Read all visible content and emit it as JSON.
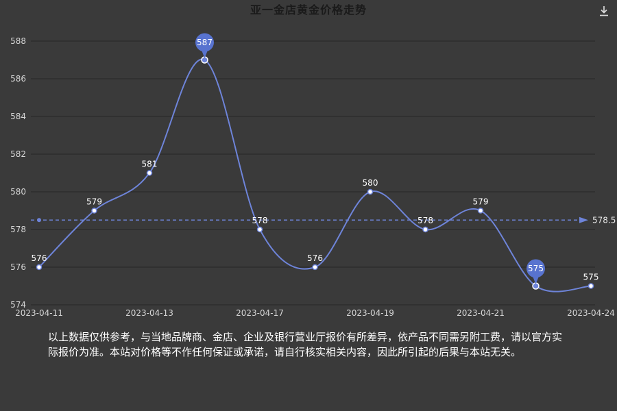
{
  "header": {
    "title": "亚一金店黄金价格走势"
  },
  "toolbar": {
    "download_icon": "download-icon"
  },
  "chart_data": {
    "type": "line",
    "title": "亚一金店黄金价格走势",
    "values": [
      576,
      579,
      581,
      587,
      578,
      576,
      580,
      578,
      579,
      575,
      575
    ],
    "x_ticks": [
      {
        "index": 0,
        "label": "2023-04-11"
      },
      {
        "index": 2,
        "label": "2023-04-13"
      },
      {
        "index": 4,
        "label": "2023-04-17"
      },
      {
        "index": 6,
        "label": "2023-04-19"
      },
      {
        "index": 8,
        "label": "2023-04-21"
      },
      {
        "index": 10,
        "label": "2023-04-24"
      }
    ],
    "y_ticks": [
      574,
      576,
      578,
      580,
      582,
      584,
      586,
      588
    ],
    "ylim": [
      574,
      588
    ],
    "grid": true,
    "legend": "none",
    "average_line": {
      "value": 578.5,
      "label": "578.5"
    },
    "max_marker": {
      "index": 3,
      "value": 587
    },
    "min_marker": {
      "index": 9,
      "value": 575
    },
    "colors": {
      "background": "#3a3a3a",
      "line": "#6e84d9",
      "balloon": "#5873cf",
      "marker_fill": "#ffffff",
      "grid": "#262626",
      "axis_text": "#d6d6d6",
      "label_text": "#ffffff",
      "avg_label_text": "#e9e9e9",
      "title_text": "#1a1a1a",
      "icon": "#d9d9d9"
    }
  },
  "footer": {
    "disclaimer": "以上数据仅供参考，与当地品牌商、金店、企业及银行营业厅报价有所差异，依产品不同需另附工费，请以官方实际报价为准。本站对价格等不作任何保证或承诺，请自行核实相关内容，因此所引起的后果与本站无关。"
  }
}
